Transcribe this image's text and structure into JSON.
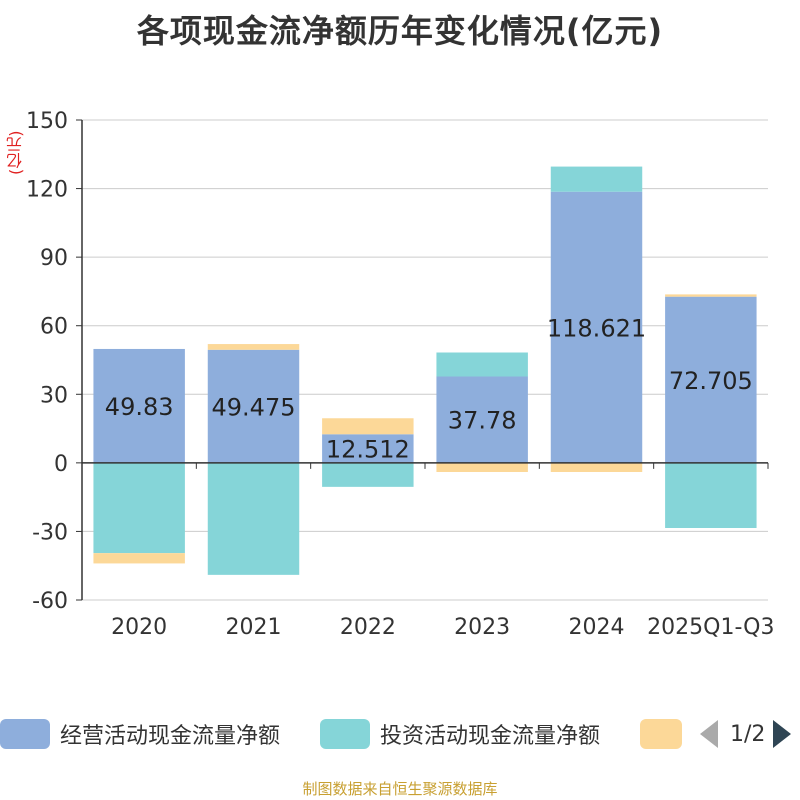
{
  "title": "各项现金流净额历年变化情况(亿元)",
  "unit_label": "(亿元)",
  "legend": {
    "items": [
      {
        "label": "经营活动现金流量净额",
        "color": "#8eaedc"
      },
      {
        "label": "投资活动现金流量净额",
        "color": "#85d5d8"
      },
      {
        "label": "",
        "color": "#fcd898"
      }
    ],
    "page_text": "1/2"
  },
  "source": "制图数据来自恒生聚源数据库",
  "chart_data": {
    "type": "bar",
    "stacked": true,
    "categories": [
      "2020",
      "2021",
      "2022",
      "2023",
      "2024",
      "2025Q1-Q3"
    ],
    "ylim": [
      -60,
      150
    ],
    "yticks": [
      150,
      120,
      90,
      60,
      30,
      0,
      -30,
      -60
    ],
    "grid": true,
    "series": [
      {
        "name": "经营活动现金流量净额",
        "color": "#8eaedc",
        "values": [
          49.83,
          49.475,
          12.512,
          37.78,
          118.621,
          72.705
        ],
        "labels": [
          "49.83",
          "49.475",
          "12.512",
          "37.78",
          "118.621",
          "72.705"
        ]
      },
      {
        "name": "投资活动现金流量净额",
        "color": "#85d5d8",
        "values": [
          -39.5,
          -49.0,
          -10.5,
          10.5,
          11.0,
          -28.5
        ]
      },
      {
        "color": "#fcd898",
        "values": [
          -4.5,
          2.5,
          7.0,
          -4.0,
          -4.0,
          1.0
        ]
      }
    ]
  }
}
